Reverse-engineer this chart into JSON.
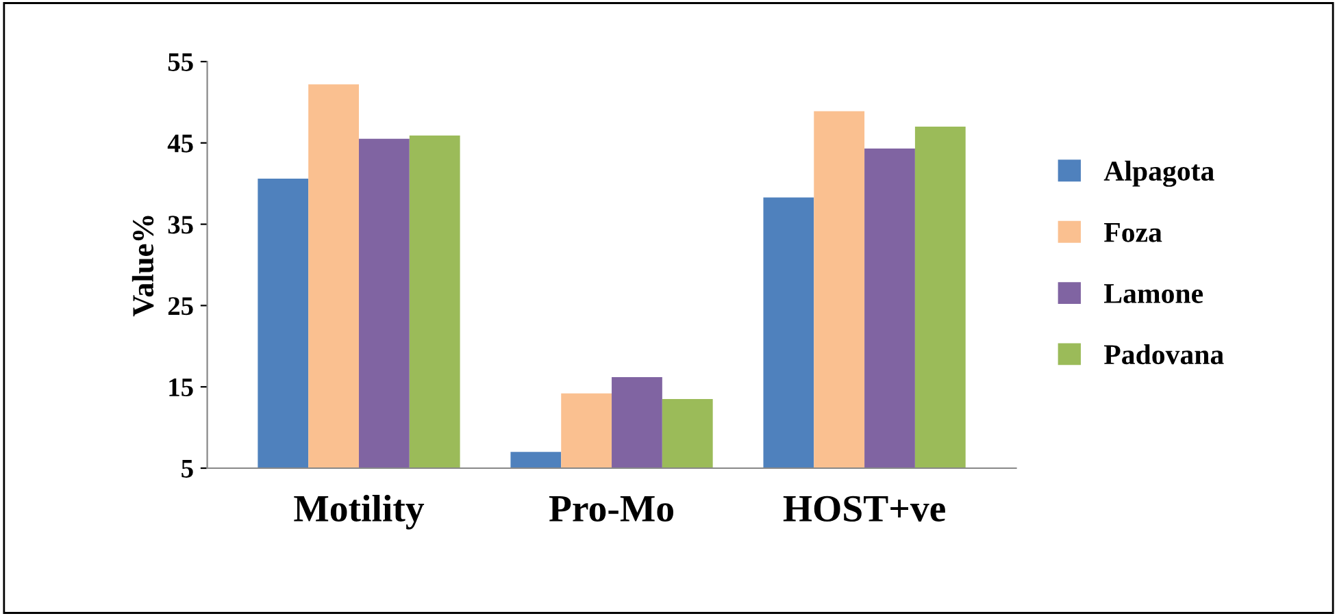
{
  "chart_data": {
    "type": "bar",
    "ylabel": "Value%",
    "categories": [
      "Motility",
      "Pro-Mo",
      "HOST+ve"
    ],
    "series": [
      {
        "name": "Alpagota",
        "color": "#4f81bd",
        "values": [
          40.6,
          7.0,
          38.3
        ]
      },
      {
        "name": "Foza",
        "color": "#fac090",
        "values": [
          52.2,
          14.2,
          48.9
        ]
      },
      {
        "name": "Lamone",
        "color": "#8064a2",
        "values": [
          45.5,
          16.2,
          44.3
        ]
      },
      {
        "name": "Padovana",
        "color": "#9bbb59",
        "values": [
          45.9,
          13.5,
          47.0
        ]
      }
    ],
    "ylim": [
      5,
      55
    ],
    "yticks": [
      5,
      15,
      25,
      35,
      45,
      55
    ],
    "grid": false,
    "legend": "right"
  }
}
